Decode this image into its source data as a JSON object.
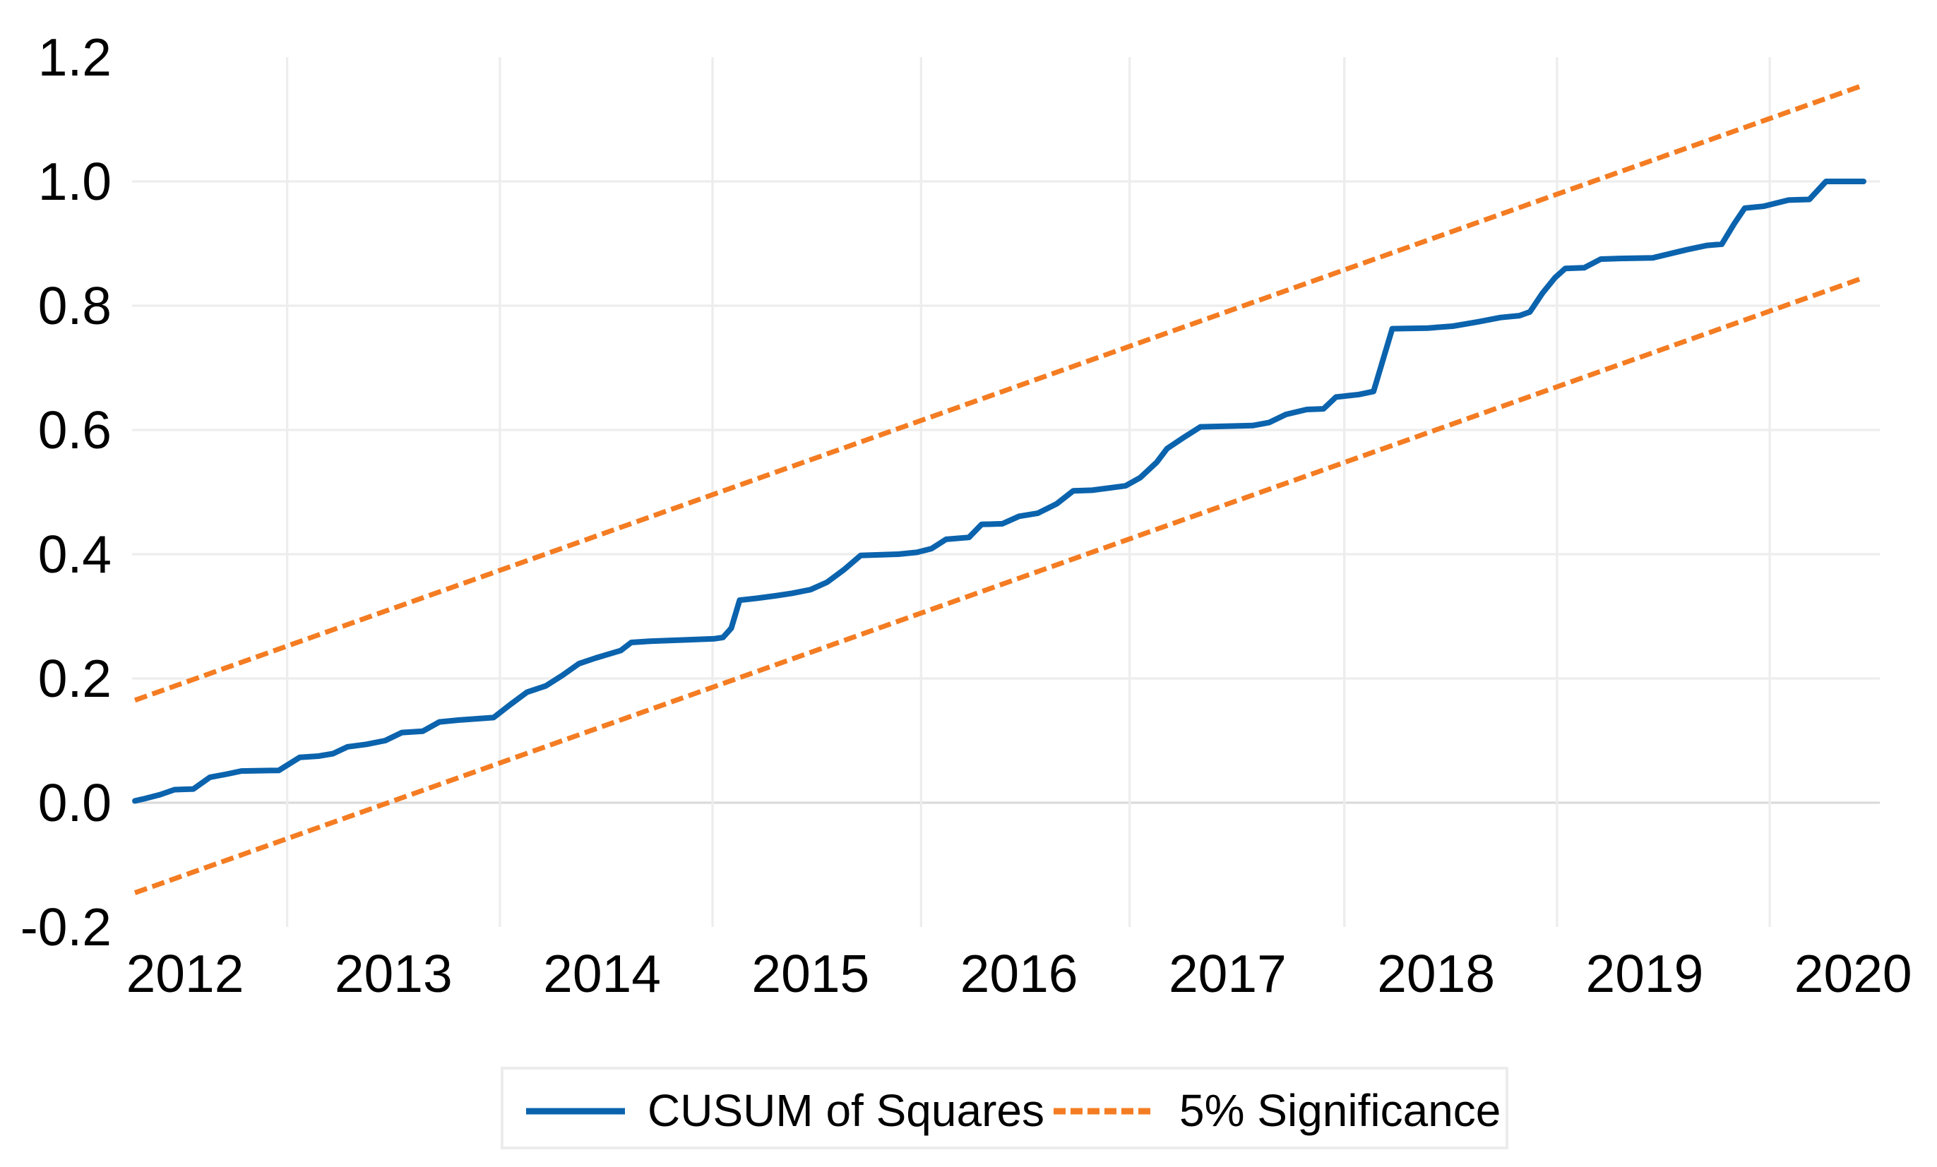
{
  "colors": {
    "cusum_blue": "#0B63AD",
    "significance_orange": "#F47C22",
    "grid": "#EDEDED",
    "zero_grid": "#DBDBDB",
    "text": "#000000",
    "legend_border": "#ECECEC",
    "background": "#FFFFFF"
  },
  "legend": {
    "cusum_label": "CUSUM of Squares",
    "significance_label": "5% Significance"
  },
  "chart_data": {
    "type": "line",
    "title": "",
    "xlabel": "",
    "ylabel": "",
    "xlim": [
      2011.746,
      2020.128
    ],
    "ylim": [
      -0.2,
      1.2
    ],
    "x_ticks": [
      2012,
      2013,
      2014,
      2015,
      2016,
      2017,
      2018,
      2019,
      2020
    ],
    "x_tick_labels": [
      "2012",
      "2013",
      "2014",
      "2015",
      "2016",
      "2017",
      "2018",
      "2019",
      "2020"
    ],
    "y_ticks": [
      -0.2,
      0.0,
      0.2,
      0.4,
      0.6,
      0.8,
      1.0,
      1.2
    ],
    "y_tick_labels": [
      "-0.2",
      "0.0",
      "0.2",
      "0.4",
      "0.6",
      "0.8",
      "1.0",
      "1.2"
    ],
    "grid": {
      "h_lines": [
        0.0,
        0.2,
        0.4,
        0.6,
        0.8,
        1.0
      ],
      "v_lines": [
        2012.49,
        2013.51,
        2014.53,
        2015.53,
        2016.53,
        2017.56,
        2018.58,
        2019.6
      ]
    },
    "legend": {
      "position": "bottom",
      "entries": [
        {
          "label": "CUSUM of Squares",
          "color": "#0B63AD",
          "style": "solid"
        },
        {
          "label": "5% Significance",
          "color": "#F47C22",
          "style": "dashed"
        }
      ]
    },
    "series": [
      {
        "name": "5% Significance (upper band)",
        "color": "#F47C22",
        "style": "dashed",
        "width": 7,
        "points": [
          [
            2011.76,
            0.165
          ],
          [
            2020.05,
            1.155
          ]
        ]
      },
      {
        "name": "5% Significance (lower band)",
        "color": "#F47C22",
        "style": "dashed",
        "width": 7,
        "points": [
          [
            2011.76,
            -0.145
          ],
          [
            2020.05,
            0.845
          ]
        ]
      },
      {
        "name": "CUSUM of Squares",
        "color": "#0B63AD",
        "style": "solid",
        "width": 8,
        "points": [
          [
            2011.76,
            0.003
          ],
          [
            2011.8,
            0.006
          ],
          [
            2011.88,
            0.013
          ],
          [
            2011.95,
            0.021
          ],
          [
            2012.04,
            0.022
          ],
          [
            2012.12,
            0.041
          ],
          [
            2012.2,
            0.046
          ],
          [
            2012.27,
            0.051
          ],
          [
            2012.45,
            0.052
          ],
          [
            2012.55,
            0.073
          ],
          [
            2012.64,
            0.075
          ],
          [
            2012.71,
            0.079
          ],
          [
            2012.78,
            0.09
          ],
          [
            2012.87,
            0.094
          ],
          [
            2012.96,
            0.1
          ],
          [
            2013.04,
            0.113
          ],
          [
            2013.14,
            0.115
          ],
          [
            2013.22,
            0.13
          ],
          [
            2013.31,
            0.133
          ],
          [
            2013.48,
            0.137
          ],
          [
            2013.56,
            0.158
          ],
          [
            2013.64,
            0.178
          ],
          [
            2013.73,
            0.188
          ],
          [
            2013.81,
            0.205
          ],
          [
            2013.89,
            0.224
          ],
          [
            2013.97,
            0.233
          ],
          [
            2014.05,
            0.241
          ],
          [
            2014.09,
            0.245
          ],
          [
            2014.14,
            0.258
          ],
          [
            2014.23,
            0.26
          ],
          [
            2014.32,
            0.261
          ],
          [
            2014.4,
            0.262
          ],
          [
            2014.54,
            0.264
          ],
          [
            2014.58,
            0.266
          ],
          [
            2014.62,
            0.281
          ],
          [
            2014.66,
            0.326
          ],
          [
            2014.74,
            0.329
          ],
          [
            2014.83,
            0.333
          ],
          [
            2014.91,
            0.337
          ],
          [
            2015.0,
            0.343
          ],
          [
            2015.08,
            0.355
          ],
          [
            2015.16,
            0.375
          ],
          [
            2015.24,
            0.398
          ],
          [
            2015.42,
            0.4
          ],
          [
            2015.51,
            0.403
          ],
          [
            2015.58,
            0.409
          ],
          [
            2015.65,
            0.424
          ],
          [
            2015.76,
            0.427
          ],
          [
            2015.82,
            0.448
          ],
          [
            2015.92,
            0.449
          ],
          [
            2016.0,
            0.461
          ],
          [
            2016.09,
            0.466
          ],
          [
            2016.18,
            0.481
          ],
          [
            2016.26,
            0.502
          ],
          [
            2016.35,
            0.503
          ],
          [
            2016.51,
            0.51
          ],
          [
            2016.58,
            0.523
          ],
          [
            2016.66,
            0.548
          ],
          [
            2016.71,
            0.57
          ],
          [
            2016.79,
            0.588
          ],
          [
            2016.87,
            0.605
          ],
          [
            2017.12,
            0.607
          ],
          [
            2017.2,
            0.612
          ],
          [
            2017.28,
            0.625
          ],
          [
            2017.38,
            0.633
          ],
          [
            2017.46,
            0.634
          ],
          [
            2017.52,
            0.653
          ],
          [
            2017.63,
            0.657
          ],
          [
            2017.7,
            0.662
          ],
          [
            2017.79,
            0.763
          ],
          [
            2017.96,
            0.764
          ],
          [
            2018.08,
            0.767
          ],
          [
            2018.2,
            0.774
          ],
          [
            2018.31,
            0.781
          ],
          [
            2018.4,
            0.784
          ],
          [
            2018.45,
            0.79
          ],
          [
            2018.51,
            0.82
          ],
          [
            2018.57,
            0.845
          ],
          [
            2018.62,
            0.86
          ],
          [
            2018.71,
            0.861
          ],
          [
            2018.79,
            0.875
          ],
          [
            2018.88,
            0.876
          ],
          [
            2019.04,
            0.877
          ],
          [
            2019.2,
            0.89
          ],
          [
            2019.3,
            0.897
          ],
          [
            2019.37,
            0.899
          ],
          [
            2019.43,
            0.932
          ],
          [
            2019.48,
            0.957
          ],
          [
            2019.57,
            0.96
          ],
          [
            2019.69,
            0.97
          ],
          [
            2019.79,
            0.971
          ],
          [
            2019.87,
            1.0
          ],
          [
            2020.05,
            1.0
          ]
        ]
      }
    ]
  }
}
